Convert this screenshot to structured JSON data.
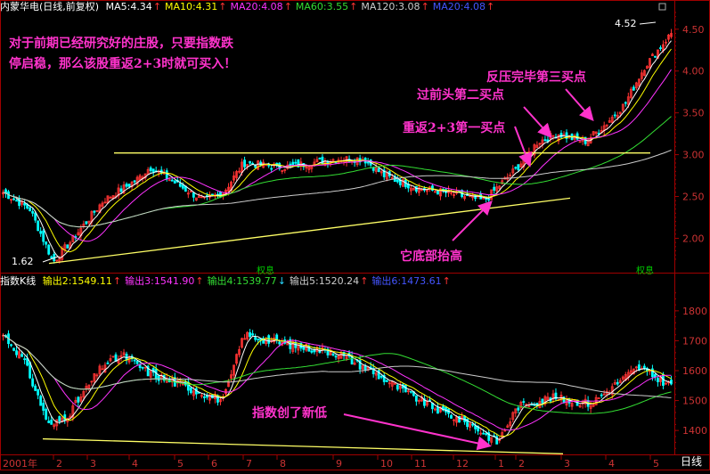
{
  "upper": {
    "title": "内蒙华电(日线,前复权)",
    "indicators": [
      {
        "label": "MA5:4.34",
        "color": "#ffffff",
        "arrow": "↑",
        "arrow_dir": "up"
      },
      {
        "label": "MA10:4.31",
        "color": "#ffff00",
        "arrow": "↑",
        "arrow_dir": "up"
      },
      {
        "label": "MA20:4.08",
        "color": "#ff33ff",
        "arrow": "↑",
        "arrow_dir": "up"
      },
      {
        "label": "MA60:3.55",
        "color": "#33dd33",
        "arrow": "↑",
        "arrow_dir": "up"
      },
      {
        "label": "MA120:3.08",
        "color": "#cccccc",
        "arrow": "↑",
        "arrow_dir": "up"
      },
      {
        "label": "MA20:4.08",
        "color": "#4455ff",
        "arrow": "↑",
        "arrow_dir": "up"
      }
    ],
    "price_high_label": "4.52",
    "price_low_label": "1.62",
    "yticks": [
      "4.50",
      "4.00",
      "3.50",
      "3.00",
      "2.50",
      "2.00"
    ],
    "tags": [
      "权息",
      "权息"
    ]
  },
  "lower": {
    "title": "指数K线",
    "indicators": [
      {
        "label": "输出2:1549.11",
        "color": "#ffff00",
        "arrow": "↑",
        "arrow_dir": "up"
      },
      {
        "label": "输出3:1541.90",
        "color": "#ff33ff",
        "arrow": "↑",
        "arrow_dir": "up"
      },
      {
        "label": "输出4:1539.77",
        "color": "#33dd33",
        "arrow": "↓",
        "arrow_dir": "down"
      },
      {
        "label": "输出5:1520.24",
        "color": "#cccccc",
        "arrow": "↑",
        "arrow_dir": "up"
      },
      {
        "label": "输出6:1473.61",
        "color": "#4455ff",
        "arrow": "↑",
        "arrow_dir": "up"
      }
    ],
    "yticks": [
      "1800",
      "1700",
      "1600",
      "1500",
      "1400"
    ]
  },
  "xaxis": {
    "labels": [
      "2001年",
      "2",
      "3",
      "4",
      "5",
      "6",
      "7",
      "8",
      "9",
      "10",
      "11",
      "12",
      "1",
      "2",
      "3",
      "4",
      "5"
    ],
    "period_label": "日线"
  },
  "annotations": {
    "note": [
      "对于前期已经研究好的庄股，只要指数跌",
      "停启稳，那么该股重返2+3时就可买入！"
    ],
    "buy1": "重返2+3第一买点",
    "buy2": "过前头第二买点",
    "buy3": "反压完毕第三买点",
    "bottom_rise": "它底部抬高",
    "index_low": "指数创了新低"
  },
  "colors": {
    "up_candle": "#ff3333",
    "down_candle": "#00ffff",
    "annotation": "#ff33cc",
    "trendline": "#ffff66",
    "axis": "#a00000"
  },
  "chart_data": [
    {
      "type": "candlestick",
      "title": "内蒙华电(日线,前复权)",
      "x": [
        "2001-01",
        "2001-02",
        "2001-03",
        "2001-04",
        "2001-05",
        "2001-06",
        "2001-07",
        "2001-08",
        "2001-09",
        "2001-10",
        "2001-11",
        "2001-12",
        "2002-01",
        "2002-02",
        "2002-03",
        "2002-04",
        "2002-05"
      ],
      "close_approx": [
        2.55,
        1.72,
        2.25,
        2.75,
        2.45,
        2.6,
        2.95,
        2.85,
        2.95,
        2.8,
        2.6,
        2.5,
        2.48,
        2.95,
        3.15,
        3.55,
        4.45
      ],
      "labeled_high": 4.52,
      "labeled_low": 1.62,
      "ylim": [
        1.6,
        4.7
      ],
      "resistance_line": 3.02,
      "rising_support": [
        [
          "2001-02",
          1.7
        ],
        [
          "2002-03",
          2.48
        ]
      ],
      "series": [
        {
          "name": "MA5",
          "last": 4.34
        },
        {
          "name": "MA10",
          "last": 4.31
        },
        {
          "name": "MA20",
          "last": 4.08
        },
        {
          "name": "MA60",
          "last": 3.55
        },
        {
          "name": "MA120",
          "last": 3.08
        }
      ]
    },
    {
      "type": "candlestick",
      "title": "指数K线",
      "x": [
        "2001-01",
        "2001-02",
        "2001-03",
        "2001-04",
        "2001-05",
        "2001-06",
        "2001-07",
        "2001-08",
        "2001-09",
        "2001-10",
        "2001-11",
        "2001-12",
        "2002-01",
        "2002-02",
        "2002-03",
        "2002-04",
        "2002-05"
      ],
      "close_approx": [
        1700,
        1400,
        1560,
        1660,
        1560,
        1520,
        1720,
        1680,
        1650,
        1560,
        1480,
        1440,
        1360,
        1500,
        1500,
        1520,
        1550
      ],
      "ylim": [
        1320,
        1880
      ],
      "falling_support": [
        [
          "2001-02",
          1370
        ],
        [
          "2002-03",
          1320
        ]
      ],
      "series": [
        {
          "name": "输出2",
          "last": 1549.11
        },
        {
          "name": "输出3",
          "last": 1541.9
        },
        {
          "name": "输出4",
          "last": 1539.77
        },
        {
          "name": "输出5",
          "last": 1520.24
        },
        {
          "name": "输出6",
          "last": 1473.61
        }
      ]
    }
  ]
}
